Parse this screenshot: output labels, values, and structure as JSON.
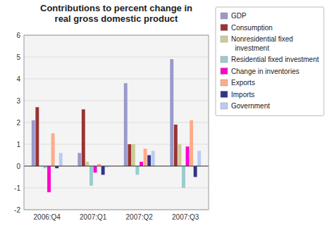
{
  "chart_data": {
    "type": "bar",
    "title": "Contributions to percent change in\nreal gross domestic product",
    "categories": [
      "2006:Q4",
      "2007:Q1",
      "2007:Q2",
      "2007:Q3"
    ],
    "series": [
      {
        "name": "GDP",
        "color": "#9999cc",
        "values": [
          2.1,
          0.6,
          3.8,
          4.9
        ]
      },
      {
        "name": "Consumption",
        "color": "#993333",
        "values": [
          2.7,
          2.6,
          1.0,
          1.9
        ]
      },
      {
        "name": "Nonresidential fixed\n  investment",
        "color": "#cccc99",
        "values": [
          0.0,
          0.2,
          1.0,
          1.0
        ]
      },
      {
        "name": "Residential fixed investment",
        "color": "#99cccc",
        "values": [
          -0.1,
          -0.9,
          -0.4,
          -1.0
        ]
      },
      {
        "name": "Change in inventories",
        "color": "#ff00cc",
        "values": [
          -1.2,
          -0.3,
          0.2,
          0.9
        ]
      },
      {
        "name": "Exports",
        "color": "#ffaa88",
        "values": [
          1.5,
          0.1,
          0.8,
          2.1
        ]
      },
      {
        "name": "Imports",
        "color": "#333388",
        "values": [
          -0.1,
          -0.4,
          0.5,
          -0.5
        ]
      },
      {
        "name": "Government",
        "color": "#bbccee",
        "values": [
          0.6,
          -0.05,
          0.7,
          0.7
        ]
      }
    ],
    "ylim": [
      -2,
      6
    ],
    "yticks": [
      -2,
      -1,
      0,
      1,
      2,
      3,
      4,
      5,
      6
    ],
    "grid": true,
    "legend": "right"
  }
}
